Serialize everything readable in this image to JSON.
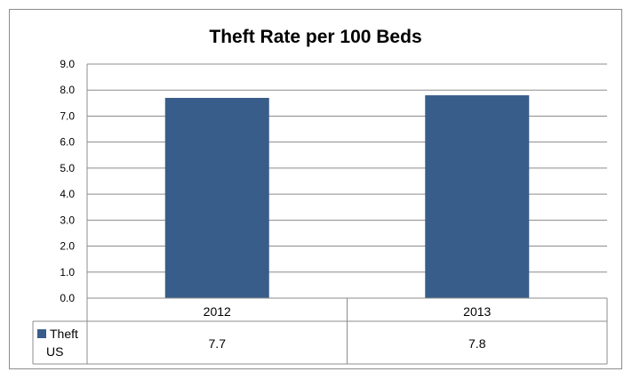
{
  "chart_data": {
    "type": "bar",
    "title": "Theft Rate per 100 Beds",
    "categories": [
      "2012",
      "2013"
    ],
    "series": [
      {
        "name": "Theft US",
        "name_lines": [
          "Theft",
          "US"
        ],
        "values": [
          7.7,
          7.8
        ],
        "value_labels": [
          "7.7",
          "7.8"
        ],
        "color": "#385d8a"
      }
    ],
    "ylim": [
      0,
      9
    ],
    "yticks": [
      "0.0",
      "1.0",
      "2.0",
      "3.0",
      "4.0",
      "5.0",
      "6.0",
      "7.0",
      "8.0",
      "9.0"
    ],
    "grid": true,
    "legend": "data-table",
    "xlabel": "",
    "ylabel": ""
  }
}
